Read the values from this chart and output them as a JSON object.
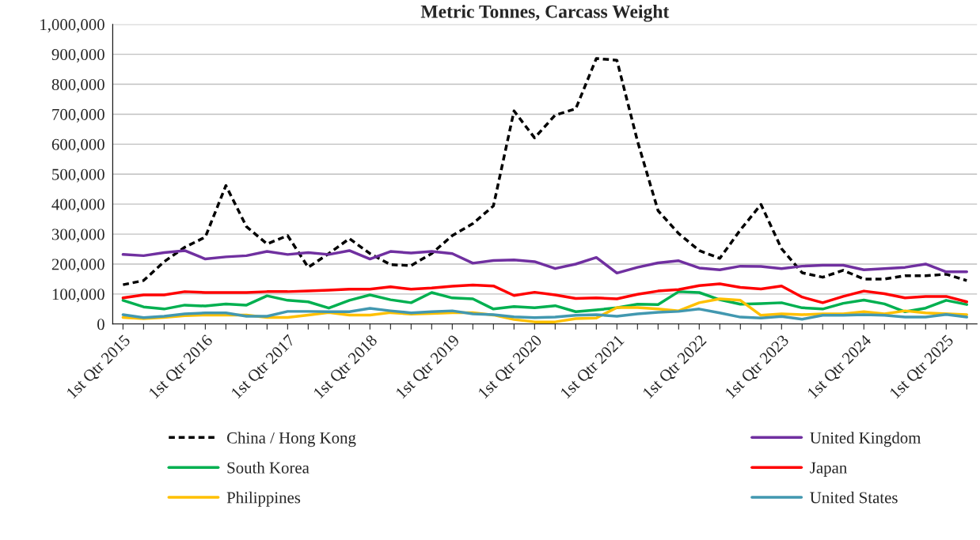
{
  "chart_data": {
    "type": "line",
    "title": "Metric Tonnes, Carcass Weight",
    "categories": [
      "1st Qtr 2015",
      null,
      null,
      null,
      "1st Qtr 2016",
      null,
      null,
      null,
      "1st Qtr 2017",
      null,
      null,
      null,
      "1st Qtr 2018",
      null,
      null,
      null,
      "1st Qtr 2019",
      null,
      null,
      null,
      "1st Qtr 2020",
      null,
      null,
      null,
      "1st Qtr 2021",
      null,
      null,
      null,
      "1st Qtr 2022",
      null,
      null,
      null,
      "1st Qtr 2023",
      null,
      null,
      null,
      "1st Qtr 2024",
      null,
      null,
      null,
      "1st Qtr 2025",
      null
    ],
    "series": [
      {
        "name": "China / Hong Kong",
        "color": "#000000",
        "line_style": "dashed",
        "values": [
          131000,
          145000,
          208000,
          256000,
          290000,
          462000,
          325000,
          267000,
          295000,
          189000,
          235000,
          285000,
          235000,
          198000,
          195000,
          235000,
          295000,
          335000,
          394000,
          711000,
          621000,
          697000,
          718000,
          886000,
          880000,
          610000,
          378000,
          302000,
          245000,
          219000,
          314000,
          399000,
          251000,
          171000,
          156000,
          179000,
          150000,
          150000,
          161000,
          161000,
          166000,
          145000
        ]
      },
      {
        "name": "United Kingdom",
        "color": "#7030a0",
        "line_style": "solid",
        "values": [
          232000,
          228000,
          238000,
          245000,
          217000,
          224000,
          228000,
          242000,
          232000,
          238000,
          232000,
          245000,
          217000,
          242000,
          237000,
          242000,
          235000,
          203000,
          212000,
          214000,
          208000,
          185000,
          200000,
          222000,
          170000,
          189000,
          204000,
          211000,
          187000,
          181000,
          193000,
          192000,
          185000,
          193000,
          196000,
          196000,
          181000,
          185000,
          189000,
          200000,
          174000,
          174000
        ]
      },
      {
        "name": "South Korea",
        "color": "#00b050",
        "line_style": "solid",
        "values": [
          79000,
          57000,
          50000,
          63000,
          60000,
          67000,
          63000,
          94000,
          79000,
          74000,
          53000,
          79000,
          97000,
          81000,
          71000,
          105000,
          87000,
          84000,
          50000,
          58000,
          54000,
          61000,
          41000,
          47000,
          54000,
          66000,
          65000,
          108000,
          105000,
          81000,
          66000,
          68000,
          71000,
          54000,
          50000,
          69000,
          80000,
          67000,
          41000,
          53000,
          79000,
          65000
        ]
      },
      {
        "name": "Japan",
        "color": "#ff0000",
        "line_style": "solid",
        "values": [
          87000,
          97000,
          97000,
          108000,
          105000,
          105000,
          105000,
          108000,
          108000,
          110000,
          113000,
          116000,
          116000,
          124000,
          116000,
          120000,
          126000,
          130000,
          127000,
          95000,
          106000,
          97000,
          85000,
          87000,
          84000,
          99000,
          110000,
          115000,
          128000,
          134000,
          122000,
          117000,
          127000,
          90000,
          71000,
          92000,
          110000,
          101000,
          87000,
          92000,
          92000,
          74000
        ]
      },
      {
        "name": "Philippines",
        "color": "#ffc000",
        "line_style": "solid",
        "values": [
          22000,
          18000,
          22000,
          28000,
          30000,
          30000,
          30000,
          22000,
          22000,
          30000,
          38000,
          30000,
          30000,
          38000,
          33000,
          35000,
          38000,
          38000,
          30000,
          15000,
          7000,
          7000,
          18000,
          20000,
          55000,
          55000,
          50000,
          44000,
          71000,
          84000,
          79000,
          29000,
          34000,
          31000,
          34000,
          34000,
          41000,
          34000,
          44000,
          37000,
          null,
          31000
        ]
      },
      {
        "name": "United States",
        "color": "#4298b0",
        "line_style": "solid",
        "values": [
          31000,
          21000,
          26000,
          34000,
          37000,
          37000,
          26000,
          26000,
          42000,
          42000,
          41000,
          41000,
          52000,
          44000,
          37000,
          41000,
          44000,
          34000,
          31000,
          24000,
          21000,
          23000,
          29000,
          31000,
          26000,
          34000,
          39000,
          42000,
          50000,
          37000,
          23000,
          20000,
          25000,
          16000,
          29000,
          29000,
          31000,
          29000,
          23000,
          23000,
          32000,
          23000
        ]
      }
    ],
    "ylim": [
      0,
      1000000
    ],
    "yticks": [
      {
        "value": 0,
        "label": "0"
      },
      {
        "value": 100000,
        "label": "100,000"
      },
      {
        "value": 200000,
        "label": "200,000"
      },
      {
        "value": 300000,
        "label": "300,000"
      },
      {
        "value": 400000,
        "label": "400,000"
      },
      {
        "value": 500000,
        "label": "500,000"
      },
      {
        "value": 600000,
        "label": "600,000"
      },
      {
        "value": 700000,
        "label": "700,000"
      },
      {
        "value": 800000,
        "label": "800,000"
      },
      {
        "value": 900000,
        "label": "900,000"
      },
      {
        "value": 1000000,
        "label": "1,000,000"
      }
    ],
    "grid": "y",
    "legend": "bottom",
    "marker": "none"
  }
}
